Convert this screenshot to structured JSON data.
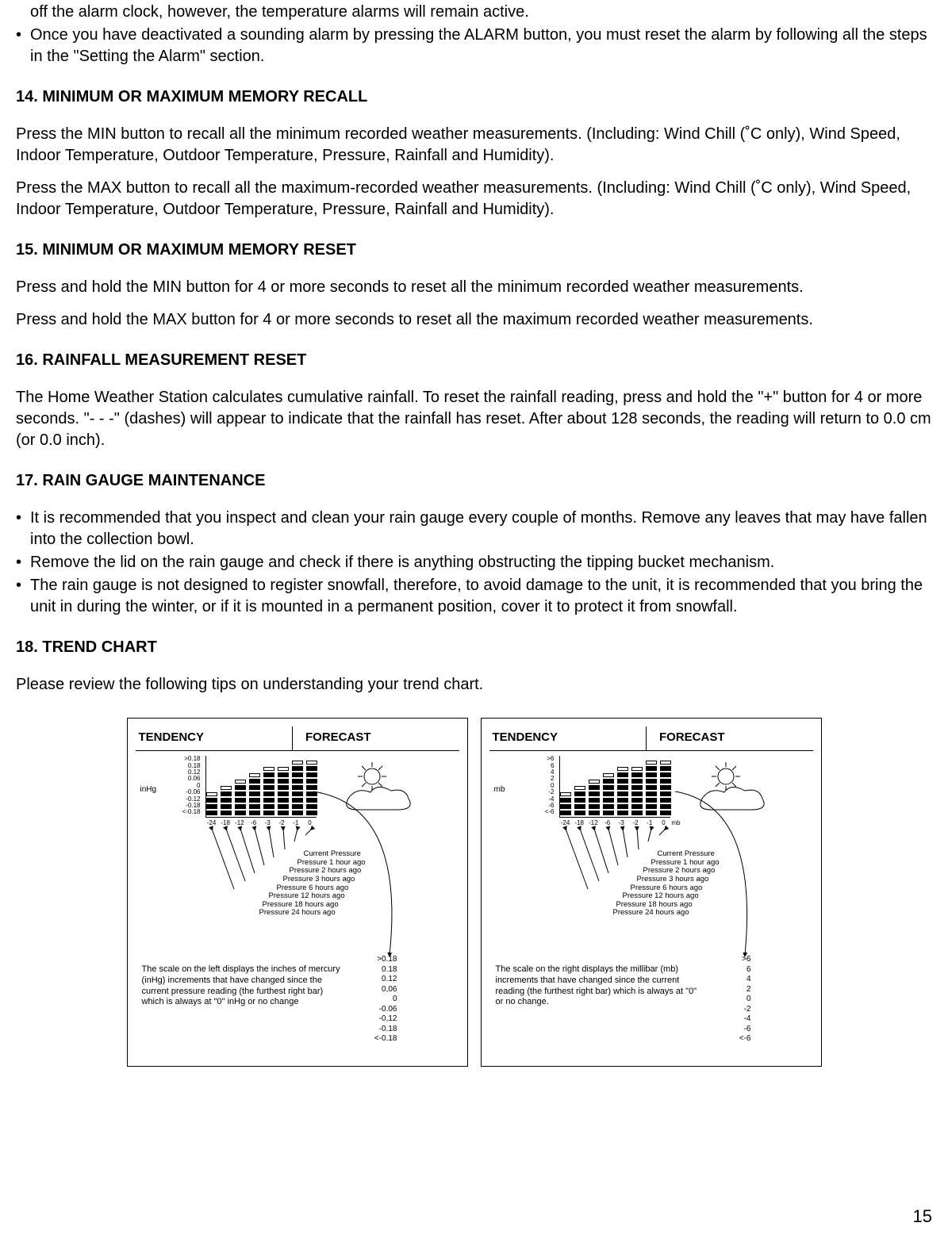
{
  "intro_bullets": [
    "off the alarm clock, however, the temperature alarms will remain active.",
    "Once you have deactivated a sounding alarm by pressing the ALARM button, you must reset the alarm by following all the steps in the \"Setting the Alarm\" section."
  ],
  "sections": {
    "s14": {
      "title": "14. MINIMUM OR MAXIMUM MEMORY RECALL",
      "p1": "Press the MIN button to recall all the minimum recorded weather measurements.  (Including: Wind Chill (˚C only), Wind Speed, Indoor Temperature, Outdoor Temperature, Pressure, Rainfall and Humidity).",
      "p2": "Press the MAX button to recall all the maximum-recorded weather measurements.  (Including: Wind Chill (˚C only), Wind Speed, Indoor Temperature, Outdoor Temperature, Pressure, Rainfall and Humidity)."
    },
    "s15": {
      "title": "15. MINIMUM OR MAXIMUM MEMORY RESET",
      "p1": "Press and hold the MIN button for 4 or more seconds to reset all the minimum recorded weather measurements.",
      "p2": "Press and hold the MAX button for 4 or more seconds to reset all the maximum recorded weather measurements."
    },
    "s16": {
      "title": "16. RAINFALL MEASUREMENT RESET",
      "p1": "The Home Weather Station calculates cumulative rainfall.  To reset the rainfall reading, press and hold the \"+\" button for 4 or more seconds.  \"- - -\" (dashes) will appear to indicate that the rainfall has reset.  After about 128 seconds, the reading will return to 0.0 cm (or 0.0 inch)."
    },
    "s17": {
      "title": "17. RAIN GAUGE MAINTENANCE",
      "bullets": [
        "It is recommended that you inspect and clean your rain gauge every couple of months.  Remove any leaves that may have fallen into the collection bowl.",
        "Remove the lid on the rain gauge and check if there is anything obstructing the tipping bucket mechanism.",
        "The rain gauge is not designed to register snowfall, therefore, to avoid damage to the unit, it is recommended that you bring the unit in during the winter, or if it is mounted in a permanent position, cover it to protect it from snowfall."
      ]
    },
    "s18": {
      "title": "18. TREND CHART",
      "p1": "Please review the following tips on understanding your trend chart."
    }
  },
  "chart": {
    "titles": {
      "left": "TENDENCY",
      "right": "FORECAST"
    },
    "bars": {
      "time_labels": [
        "-24",
        "-18",
        "-12",
        "-6",
        "-3",
        "-2",
        "-1",
        "0"
      ],
      "heights": [
        3,
        4,
        5,
        6,
        7,
        7,
        8,
        8
      ]
    },
    "legend_lines": [
      "Current Pressure",
      "Pressure 1 hour ago",
      "Pressure 2 hours ago",
      "Pressure 3 hours ago",
      "Pressure 6 hours ago",
      "Pressure 12 hours ago",
      "Pressure 18 hours ago",
      "Pressure 24 hours ago"
    ],
    "inhg": {
      "unit": "inHg",
      "scale": [
        ">0.18",
        "0.18",
        "0.12",
        "0.06",
        "0",
        "-0.06",
        "-0.12",
        "-0.18",
        "<-0.18"
      ],
      "explain": "The scale on the left displays the inches of mercury (inHg) increments that have changed since the current pressure reading (the furthest right bar) which is always at \"0\" inHg or no change",
      "scale2": [
        ">0.18",
        "0.18",
        "0.12",
        "0,06",
        "0",
        "-0.06",
        "-0,12",
        "-0.18",
        "<-0.18"
      ]
    },
    "mb": {
      "unit": "mb",
      "unit_suffix": "mb",
      "scale": [
        ">6",
        "6",
        "4",
        "2",
        "0",
        "-2",
        "-4",
        "-6",
        "<-6"
      ],
      "explain": "The scale on the right displays the millibar (mb) increments that have changed since the current reading (the furthest right bar) which is always at \"0\" or no change.",
      "scale2": [
        ">6",
        "6",
        "4",
        "2",
        "0",
        "-2",
        "-4",
        "-6",
        "<-6"
      ]
    }
  },
  "page_number": "15"
}
